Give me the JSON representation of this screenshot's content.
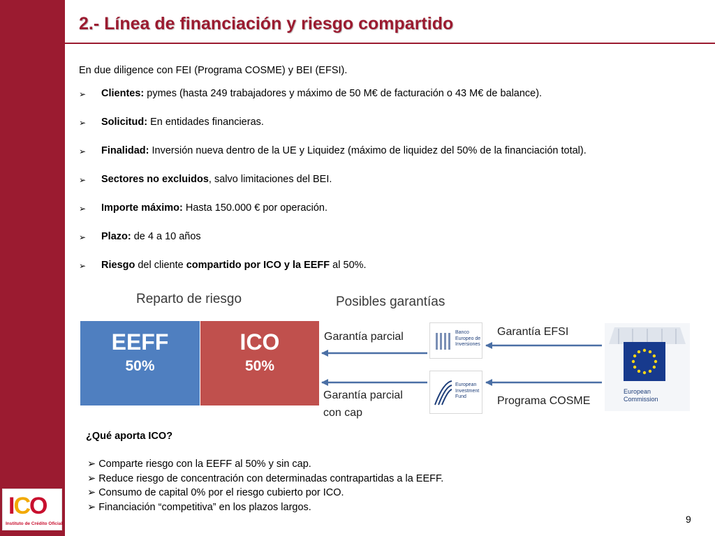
{
  "brand": {
    "color": "#9b1b30",
    "logo_letters": [
      "I",
      "C",
      "O"
    ],
    "logo_caption": "Instituto de Crédito Oficial"
  },
  "slide": {
    "title": "2.- Línea de financiación y riesgo compartido",
    "page_number": "9"
  },
  "intro": "En due diligence con FEI (Programa COSME) y BEI (EFSI).",
  "bullets": [
    {
      "bold": "Clientes:",
      "text": " pymes (hasta 249 trabajadores y máximo de 50 M€ de facturación o 43 M€ de balance)."
    },
    {
      "bold": "Solicitud:",
      "text": " En entidades financieras."
    },
    {
      "bold": "Finalidad:",
      "text": " Inversión nueva dentro de la UE y Liquidez (máximo de liquidez del 50% de la financiación total)."
    },
    {
      "bold": "Sectores no excluidos",
      "text": ", salvo limitaciones del BEI."
    },
    {
      "bold": "Importe máximo:",
      "text": "  Hasta 150.000 € por operación."
    },
    {
      "bold": "Plazo:",
      "text": " de 4 a 10 años"
    },
    {
      "bold": "Riesgo",
      "text": "  del cliente ",
      "bold2": "compartido por ICO y la EEFF",
      "text2": " al 50%."
    }
  ],
  "diagram": {
    "reparto_label": "Reparto de riesgo",
    "posibles_label": "Posibles garantías",
    "segments": [
      {
        "name": "EEFF",
        "share": "50%",
        "color": "#4f7fc0"
      },
      {
        "name": "ICO",
        "share": "50%",
        "color": "#c0504d"
      }
    ],
    "flows": {
      "garantia_parcial": "Garantía  parcial",
      "garantia_parcial_cap_line1": "Garantía     parcial",
      "garantia_parcial_cap_line2": "con cap",
      "garantia_efsi": "Garantía  EFSI",
      "programa_cosme": "Programa COSME"
    },
    "institutions": {
      "eib": "Banco Europeo de Inversiones",
      "eif": "European Investment Fund",
      "ec_line1": "European",
      "ec_line2": "Commission"
    },
    "arrow_color": "#4a6fa5"
  },
  "aporta": {
    "question": "¿Qué aporta ICO?",
    "items": [
      "Comparte riesgo con la EEFF al 50% y sin cap.",
      "Reduce riesgo de concentración con determinadas contrapartidas a la EEFF.",
      "Consumo de capital 0% por el riesgo cubierto por ICO.",
      "Financiación “competitiva” en los plazos largos."
    ]
  }
}
